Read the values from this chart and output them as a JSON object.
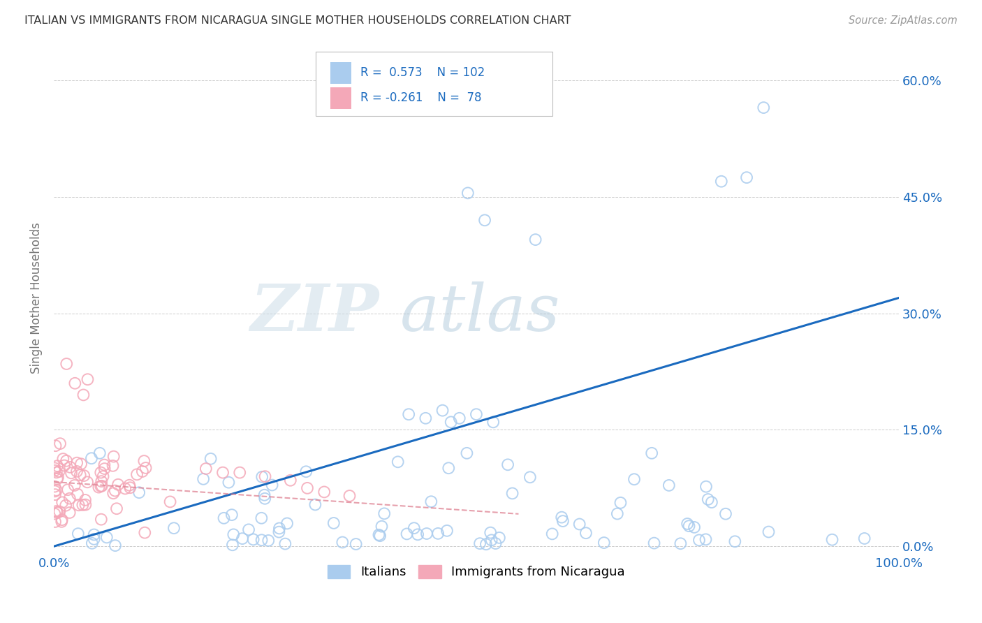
{
  "title": "ITALIAN VS IMMIGRANTS FROM NICARAGUA SINGLE MOTHER HOUSEHOLDS CORRELATION CHART",
  "source_text": "Source: ZipAtlas.com",
  "ylabel": "Single Mother Households",
  "xlim": [
    0.0,
    1.0
  ],
  "ylim": [
    -0.01,
    0.65
  ],
  "yticks": [
    0.0,
    0.15,
    0.3,
    0.45,
    0.6
  ],
  "ytick_labels": [
    "0.0%",
    "15.0%",
    "30.0%",
    "45.0%",
    "60.0%"
  ],
  "blue_R": 0.573,
  "blue_N": 102,
  "pink_R": -0.261,
  "pink_N": 78,
  "blue_color": "#aaccee",
  "pink_color": "#f4a8b8",
  "blue_line_color": "#1a6abf",
  "pink_line_color": "#e08898",
  "background_color": "#ffffff",
  "watermark_zip": "ZIP",
  "watermark_atlas": "atlas",
  "watermark_zip_color": "#c8d8e8",
  "watermark_atlas_color": "#a8c4dc",
  "blue_slope": 0.32,
  "blue_intercept": 0.0,
  "pink_slope": -0.075,
  "pink_intercept": 0.083
}
